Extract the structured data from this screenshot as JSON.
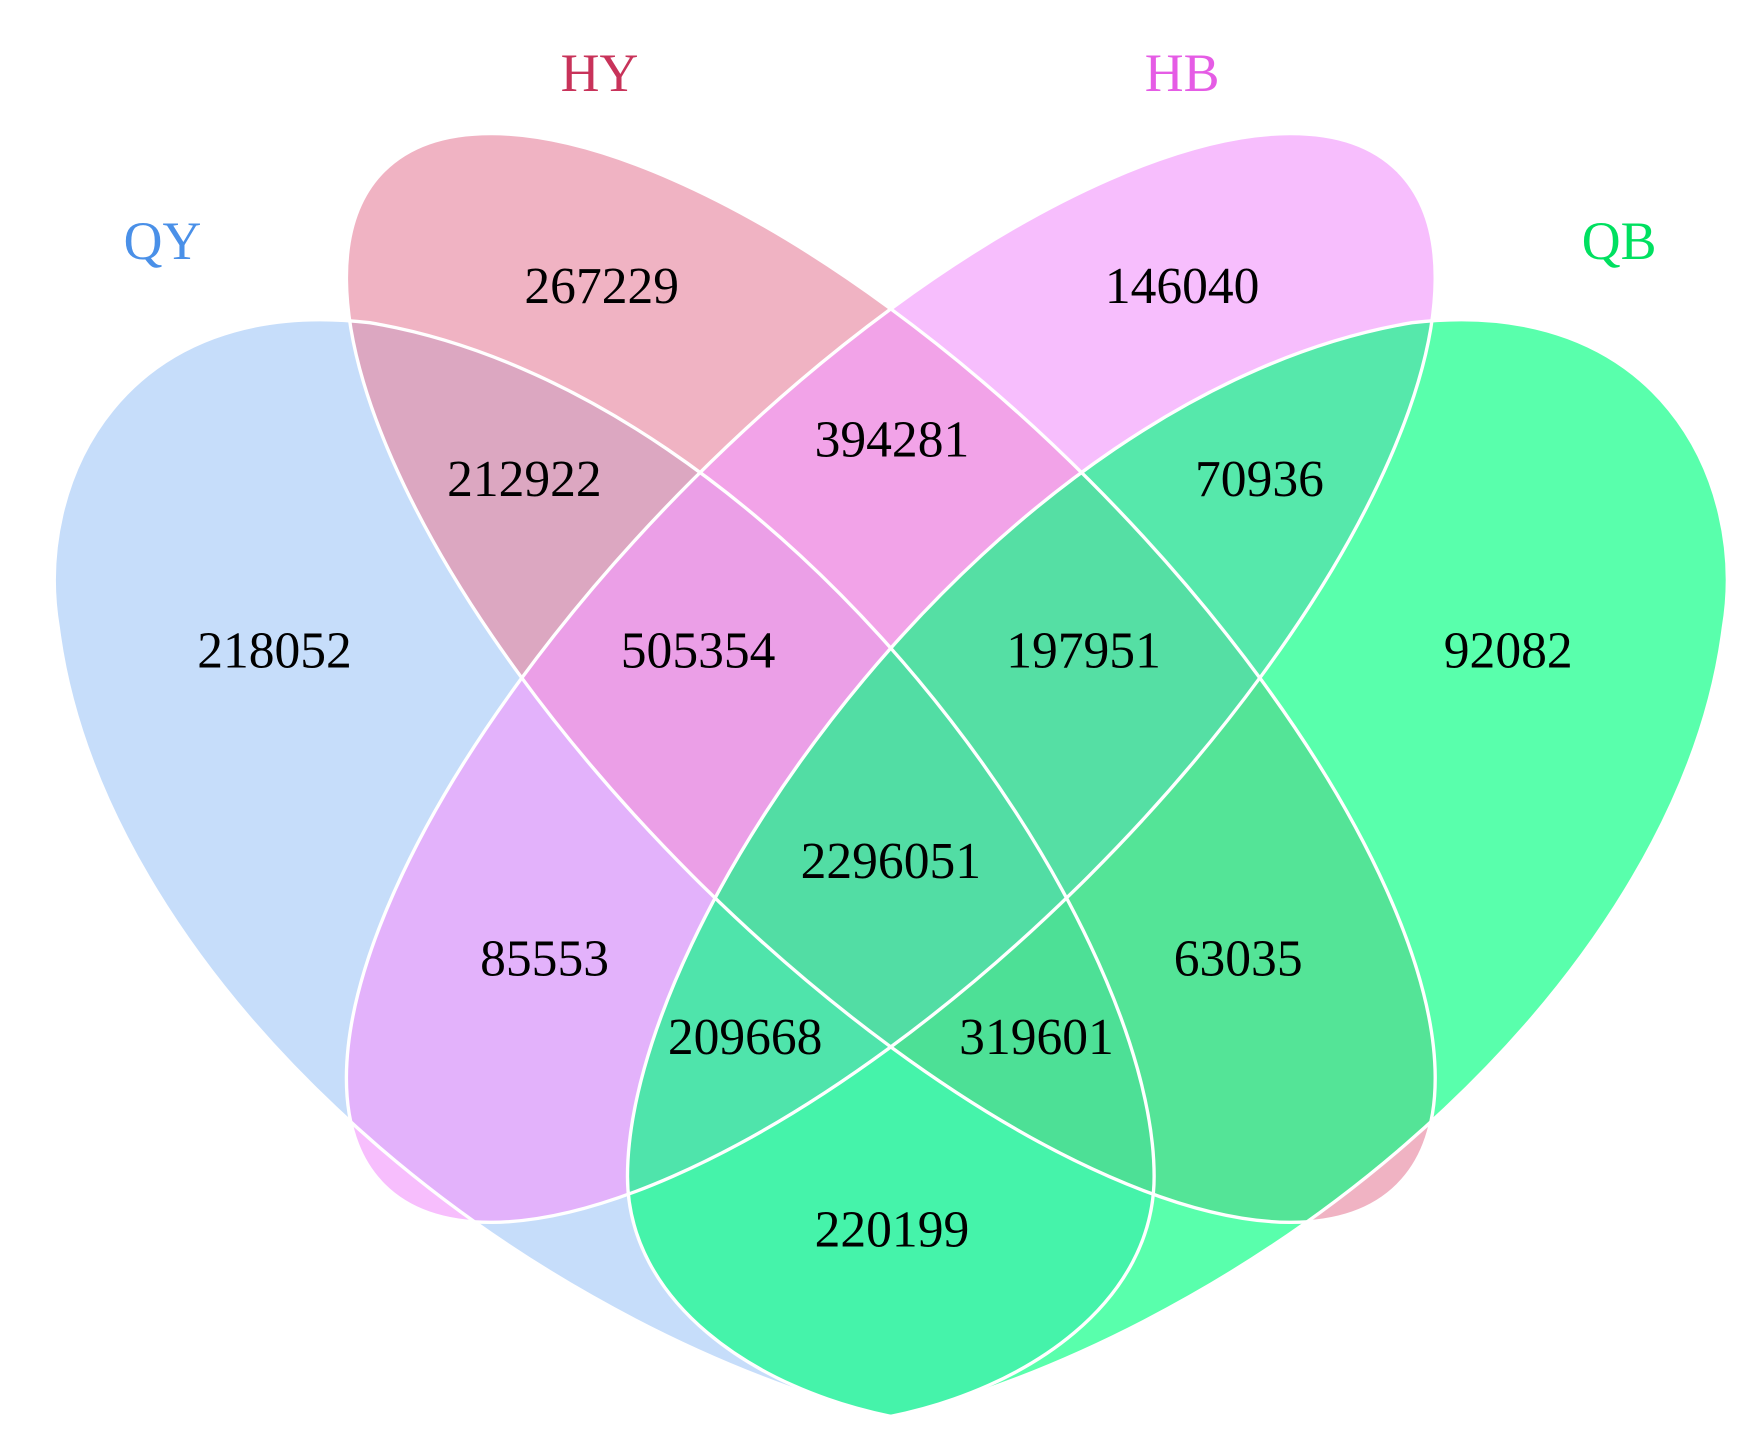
{
  "chart_data": {
    "type": "venn",
    "sets": [
      {
        "name": "QY",
        "color": "#a8cbf7"
      },
      {
        "name": "HY",
        "color": "#e88aa3"
      },
      {
        "name": "HB",
        "color": "#f39bfc"
      },
      {
        "name": "QB",
        "color": "#00ff7f"
      }
    ],
    "values": [
      267229,
      146040,
      212922,
      394281,
      70936,
      218052,
      505354,
      197951,
      92082,
      2296051,
      85553,
      63035,
      209668,
      319601,
      220199
    ]
  }
}
